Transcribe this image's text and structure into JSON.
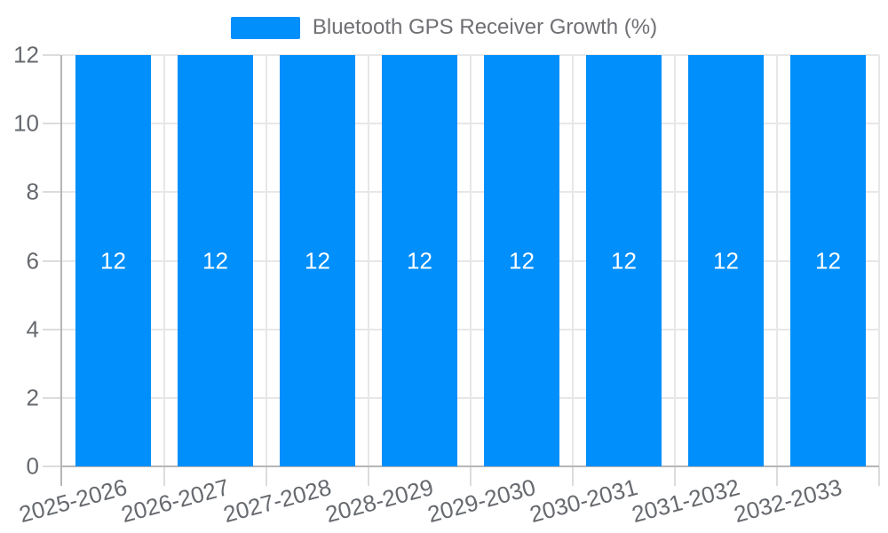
{
  "legend": {
    "label": "Bluetooth GPS Receiver Growth (%)"
  },
  "chart_data": {
    "type": "bar",
    "title": "Bluetooth GPS Receiver Growth (%)",
    "categories": [
      "2025-2026",
      "2026-2027",
      "2027-2028",
      "2028-2029",
      "2029-2030",
      "2030-2031",
      "2031-2032",
      "2032-2033"
    ],
    "series": [
      {
        "name": "Bluetooth GPS Receiver Growth (%)",
        "values": [
          12,
          12,
          12,
          12,
          12,
          12,
          12,
          12
        ]
      }
    ],
    "xlabel": "",
    "ylabel": "",
    "ylim": [
      0,
      12
    ],
    "yticks": [
      0,
      2,
      4,
      6,
      8,
      10,
      12
    ],
    "grid": true,
    "legend_position": "top",
    "x_label_rotation_deg": -15,
    "colors": {
      "bar": "#008FFB",
      "value_label": "#FFFFFF",
      "axis_label": "#66696E",
      "legend_text": "#6F6F74",
      "gridline": "#E7E7E7",
      "axis_line": "#B6B6B6",
      "tick": "#DCDCDC",
      "background": "#FFFFFF"
    }
  }
}
